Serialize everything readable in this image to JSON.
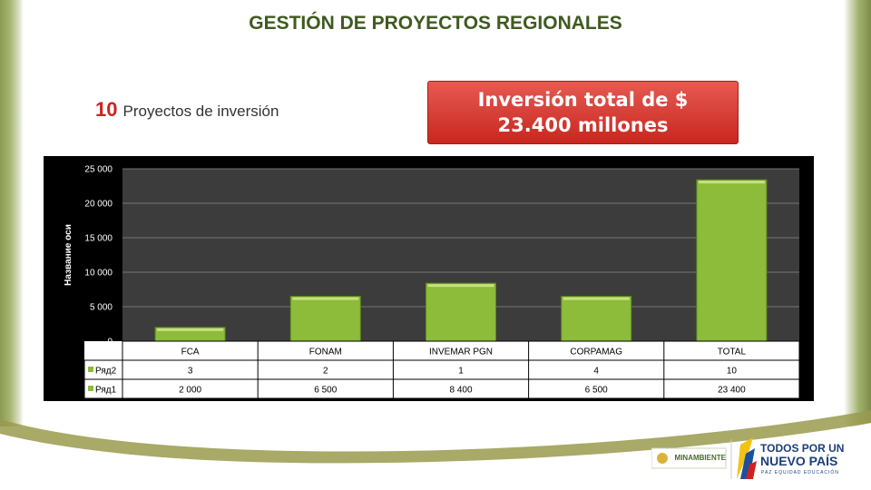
{
  "header": {
    "title": "GESTIÓN DE PROYECTOS REGIONALES"
  },
  "stats": {
    "count": "10",
    "count_label": "Proyectos de inversión"
  },
  "investment": {
    "line1": "Inversión total de $",
    "line2": "23.400 millones"
  },
  "chart_data": {
    "type": "bar",
    "categories": [
      "FCA",
      "FONAM",
      "INVEMAR PGN",
      "CORPAMAG",
      "TOTAL"
    ],
    "y_ticks": [
      "25 000",
      "20 000",
      "15 000",
      "10 000",
      "5 000",
      "0"
    ],
    "ylabel": "Название оси",
    "ylim": [
      0,
      25000
    ],
    "grid": true,
    "bar_color": "#8dbb3a",
    "plot_background": "#3c3c3c",
    "series": [
      {
        "name": "Ряд2",
        "values": [
          3,
          2,
          1,
          4,
          10
        ],
        "labels": [
          "3",
          "2",
          "1",
          "4",
          "10"
        ],
        "plotted": false
      },
      {
        "name": "Ряд1",
        "values": [
          2000,
          6500,
          8400,
          6500,
          23400
        ],
        "labels": [
          "2 000",
          "6 500",
          "8 400",
          "6 500",
          "23 400"
        ],
        "plotted": true
      }
    ]
  },
  "footer": {
    "ministry_logo": "MINAMBIENTE",
    "slogan_line1": "TODOS POR UN",
    "slogan_line2": "NUEVO PAÍS",
    "slogan_sub": "PAZ EQUIDAD EDUCACIÓN"
  }
}
